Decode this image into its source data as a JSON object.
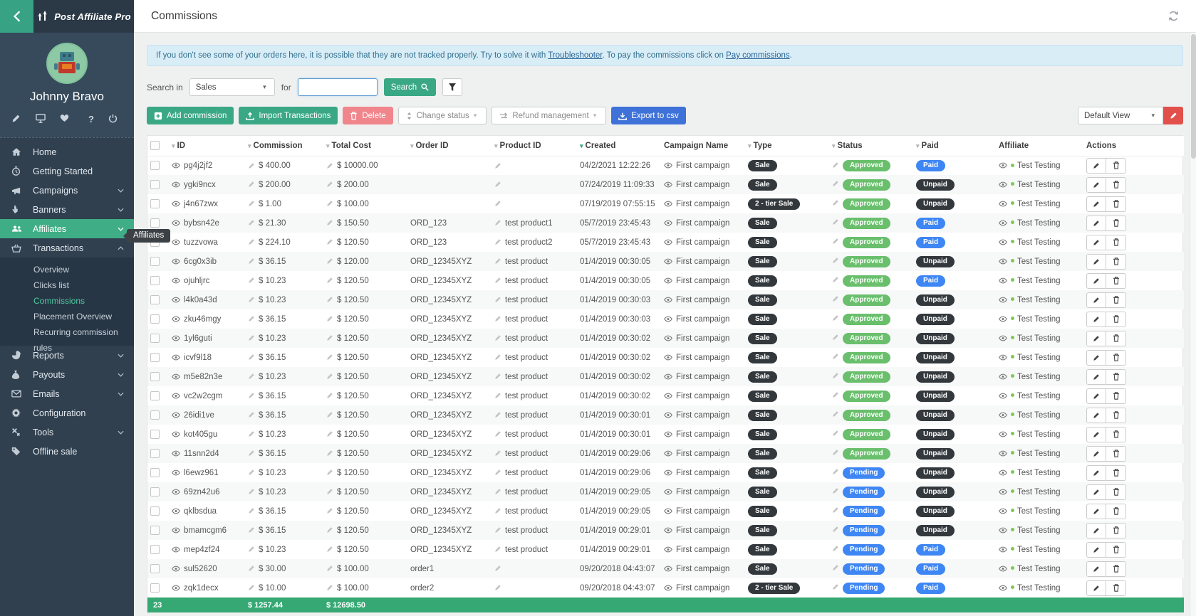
{
  "colors": {
    "primary_green": "#3aa884",
    "active_menu_green": "#3fae87",
    "approved_green": "#69bf6c",
    "status_blue": "#3e86f4",
    "pill_dark": "#33383d",
    "delete_pink": "#f0868c",
    "export_blue": "#3f72d8",
    "edit_red": "#e2504c",
    "footer_green": "#35a873",
    "banner_bg": "#d9edf7",
    "banner_text": "#31708f"
  },
  "sidebar": {
    "brand": "Post Affiliate Pro",
    "user_name": "Johnny Bravo",
    "quick_icons": [
      "edit-icon",
      "monitor-icon",
      "health-icon",
      "help-icon",
      "power-icon"
    ],
    "tooltip": "Affiliates",
    "menu": [
      {
        "label": "Home",
        "icon": "home",
        "chevron": "none",
        "active": false
      },
      {
        "label": "Getting Started",
        "icon": "clock",
        "chevron": "none",
        "active": false
      },
      {
        "label": "Campaigns",
        "icon": "megaphone",
        "chevron": "down",
        "active": false
      },
      {
        "label": "Banners",
        "icon": "pointer",
        "chevron": "down",
        "active": false
      },
      {
        "label": "Affiliates",
        "icon": "users",
        "chevron": "down",
        "active": true
      },
      {
        "label": "Transactions",
        "icon": "basket",
        "chevron": "up",
        "active": false,
        "submenu": [
          {
            "label": "Overview",
            "active": false
          },
          {
            "label": "Clicks list",
            "active": false
          },
          {
            "label": "Commissions",
            "active": true
          },
          {
            "label": "Placement Overview",
            "active": false
          },
          {
            "label": "Recurring commission rules",
            "active": false
          }
        ]
      },
      {
        "label": "Reports",
        "icon": "pie",
        "chevron": "down",
        "active": false
      },
      {
        "label": "Payouts",
        "icon": "moneybag",
        "chevron": "down",
        "active": false
      },
      {
        "label": "Emails",
        "icon": "envelope",
        "chevron": "down",
        "active": false
      },
      {
        "label": "Configuration",
        "icon": "gear",
        "chevron": "none",
        "active": false
      },
      {
        "label": "Tools",
        "icon": "tools",
        "chevron": "down",
        "active": false
      },
      {
        "label": "Offline sale",
        "icon": "tag",
        "chevron": "none",
        "active": false
      }
    ]
  },
  "topbar": {
    "title": "Commissions"
  },
  "banner": {
    "text_before": "If you don't see some of your orders here, it is possible that they are not tracked properly. Try to solve it with ",
    "link1": "Troubleshooter",
    "text_mid": ". To pay the commissions click on ",
    "link2": "Pay commissions",
    "text_after": "."
  },
  "search": {
    "label": "Search in",
    "selected": "Sales",
    "for_label": "for",
    "input_value": "",
    "button": "Search"
  },
  "toolbar": {
    "add": "Add commission",
    "import": "Import Transactions",
    "delete": "Delete",
    "change_status": "Change status",
    "refund": "Refund management",
    "export": "Export to csv",
    "view": "Default View"
  },
  "table": {
    "columns": [
      {
        "key": "check",
        "label": "",
        "sort": "none"
      },
      {
        "key": "id",
        "label": "ID",
        "sort": "gray"
      },
      {
        "key": "commission",
        "label": "Commission",
        "sort": "gray"
      },
      {
        "key": "cost",
        "label": "Total Cost",
        "sort": "gray"
      },
      {
        "key": "order",
        "label": "Order ID",
        "sort": "gray"
      },
      {
        "key": "product",
        "label": "Product ID",
        "sort": "gray"
      },
      {
        "key": "created",
        "label": "Created",
        "sort": "desc-active"
      },
      {
        "key": "campaign",
        "label": "Campaign Name",
        "sort": "none"
      },
      {
        "key": "type",
        "label": "Type",
        "sort": "gray"
      },
      {
        "key": "status",
        "label": "Status",
        "sort": "gray"
      },
      {
        "key": "paid",
        "label": "Paid",
        "sort": "gray"
      },
      {
        "key": "affiliate",
        "label": "Affiliate",
        "sort": "none"
      },
      {
        "key": "actions",
        "label": "Actions",
        "sort": "none"
      }
    ],
    "rows": [
      {
        "id": "pg4j2jf2",
        "commission": "$ 400.00",
        "cost": "$ 10000.00",
        "order": "",
        "product": "",
        "created": "04/2/2021 12:22:26",
        "campaign": "First campaign",
        "type": "Sale",
        "status": "Approved",
        "paid": "Paid",
        "affiliate": "Test Testing"
      },
      {
        "id": "ygki9ncx",
        "commission": "$ 200.00",
        "cost": "$ 200.00",
        "order": "",
        "product": "",
        "created": "07/24/2019 11:09:33",
        "campaign": "First campaign",
        "type": "Sale",
        "status": "Approved",
        "paid": "Unpaid",
        "affiliate": "Test Testing"
      },
      {
        "id": "j4n67zwx",
        "commission": "$ 1.00",
        "cost": "$ 100.00",
        "order": "",
        "product": "",
        "created": "07/19/2019 07:55:15",
        "campaign": "First campaign",
        "type": "2 - tier Sale",
        "status": "Approved",
        "paid": "Unpaid",
        "affiliate": "Test Testing"
      },
      {
        "id": "bybsn42e",
        "commission": "$ 21.30",
        "cost": "$ 150.50",
        "order": "ORD_123",
        "product": "test product1",
        "created": "05/7/2019 23:45:43",
        "campaign": "First campaign",
        "type": "Sale",
        "status": "Approved",
        "paid": "Paid",
        "affiliate": "Test Testing"
      },
      {
        "id": "tuzzvowa",
        "commission": "$ 224.10",
        "cost": "$ 120.50",
        "order": "ORD_123",
        "product": "test product2",
        "created": "05/7/2019 23:45:43",
        "campaign": "First campaign",
        "type": "Sale",
        "status": "Approved",
        "paid": "Paid",
        "affiliate": "Test Testing"
      },
      {
        "id": "6cg0x3ib",
        "commission": "$ 36.15",
        "cost": "$ 120.00",
        "order": "ORD_12345XYZ",
        "product": "test product",
        "created": "01/4/2019 00:30:05",
        "campaign": "First campaign",
        "type": "Sale",
        "status": "Approved",
        "paid": "Unpaid",
        "affiliate": "Test Testing"
      },
      {
        "id": "ojuhljrc",
        "commission": "$ 10.23",
        "cost": "$ 120.50",
        "order": "ORD_12345XYZ",
        "product": "test product",
        "created": "01/4/2019 00:30:05",
        "campaign": "First campaign",
        "type": "Sale",
        "status": "Approved",
        "paid": "Paid",
        "affiliate": "Test Testing"
      },
      {
        "id": "l4k0a43d",
        "commission": "$ 10.23",
        "cost": "$ 120.50",
        "order": "ORD_12345XYZ",
        "product": "test product",
        "created": "01/4/2019 00:30:03",
        "campaign": "First campaign",
        "type": "Sale",
        "status": "Approved",
        "paid": "Unpaid",
        "affiliate": "Test Testing"
      },
      {
        "id": "zku46mgy",
        "commission": "$ 36.15",
        "cost": "$ 120.50",
        "order": "ORD_12345XYZ",
        "product": "test product",
        "created": "01/4/2019 00:30:03",
        "campaign": "First campaign",
        "type": "Sale",
        "status": "Approved",
        "paid": "Unpaid",
        "affiliate": "Test Testing"
      },
      {
        "id": "1yl6guti",
        "commission": "$ 10.23",
        "cost": "$ 120.50",
        "order": "ORD_12345XYZ",
        "product": "test product",
        "created": "01/4/2019 00:30:02",
        "campaign": "First campaign",
        "type": "Sale",
        "status": "Approved",
        "paid": "Unpaid",
        "affiliate": "Test Testing"
      },
      {
        "id": "icvf9l18",
        "commission": "$ 36.15",
        "cost": "$ 120.50",
        "order": "ORD_12345XYZ",
        "product": "test product",
        "created": "01/4/2019 00:30:02",
        "campaign": "First campaign",
        "type": "Sale",
        "status": "Approved",
        "paid": "Unpaid",
        "affiliate": "Test Testing"
      },
      {
        "id": "m5e82n3e",
        "commission": "$ 10.23",
        "cost": "$ 120.50",
        "order": "ORD_12345XYZ",
        "product": "test product",
        "created": "01/4/2019 00:30:02",
        "campaign": "First campaign",
        "type": "Sale",
        "status": "Approved",
        "paid": "Unpaid",
        "affiliate": "Test Testing"
      },
      {
        "id": "vc2w2cgm",
        "commission": "$ 36.15",
        "cost": "$ 120.50",
        "order": "ORD_12345XYZ",
        "product": "test product",
        "created": "01/4/2019 00:30:02",
        "campaign": "First campaign",
        "type": "Sale",
        "status": "Approved",
        "paid": "Unpaid",
        "affiliate": "Test Testing"
      },
      {
        "id": "26idi1ve",
        "commission": "$ 36.15",
        "cost": "$ 120.50",
        "order": "ORD_12345XYZ",
        "product": "test product",
        "created": "01/4/2019 00:30:01",
        "campaign": "First campaign",
        "type": "Sale",
        "status": "Approved",
        "paid": "Unpaid",
        "affiliate": "Test Testing"
      },
      {
        "id": "kot405gu",
        "commission": "$ 10.23",
        "cost": "$ 120.50",
        "order": "ORD_12345XYZ",
        "product": "test product",
        "created": "01/4/2019 00:30:01",
        "campaign": "First campaign",
        "type": "Sale",
        "status": "Approved",
        "paid": "Unpaid",
        "affiliate": "Test Testing"
      },
      {
        "id": "11snn2d4",
        "commission": "$ 36.15",
        "cost": "$ 120.50",
        "order": "ORD_12345XYZ",
        "product": "test product",
        "created": "01/4/2019 00:29:06",
        "campaign": "First campaign",
        "type": "Sale",
        "status": "Approved",
        "paid": "Unpaid",
        "affiliate": "Test Testing"
      },
      {
        "id": "l6ewz961",
        "commission": "$ 10.23",
        "cost": "$ 120.50",
        "order": "ORD_12345XYZ",
        "product": "test product",
        "created": "01/4/2019 00:29:06",
        "campaign": "First campaign",
        "type": "Sale",
        "status": "Pending",
        "paid": "Unpaid",
        "affiliate": "Test Testing"
      },
      {
        "id": "69zn42u6",
        "commission": "$ 10.23",
        "cost": "$ 120.50",
        "order": "ORD_12345XYZ",
        "product": "test product",
        "created": "01/4/2019 00:29:05",
        "campaign": "First campaign",
        "type": "Sale",
        "status": "Pending",
        "paid": "Unpaid",
        "affiliate": "Test Testing"
      },
      {
        "id": "qklbsdua",
        "commission": "$ 36.15",
        "cost": "$ 120.50",
        "order": "ORD_12345XYZ",
        "product": "test product",
        "created": "01/4/2019 00:29:05",
        "campaign": "First campaign",
        "type": "Sale",
        "status": "Pending",
        "paid": "Unpaid",
        "affiliate": "Test Testing"
      },
      {
        "id": "bmamcgm6",
        "commission": "$ 36.15",
        "cost": "$ 120.50",
        "order": "ORD_12345XYZ",
        "product": "test product",
        "created": "01/4/2019 00:29:01",
        "campaign": "First campaign",
        "type": "Sale",
        "status": "Pending",
        "paid": "Unpaid",
        "affiliate": "Test Testing"
      },
      {
        "id": "mep4zf24",
        "commission": "$ 10.23",
        "cost": "$ 120.50",
        "order": "ORD_12345XYZ",
        "product": "test product",
        "created": "01/4/2019 00:29:01",
        "campaign": "First campaign",
        "type": "Sale",
        "status": "Pending",
        "paid": "Paid",
        "affiliate": "Test Testing"
      },
      {
        "id": "sul52620",
        "commission": "$ 30.00",
        "cost": "$ 100.00",
        "order": "order1",
        "product": "",
        "created": "09/20/2018 04:43:07",
        "campaign": "First campaign",
        "type": "Sale",
        "status": "Pending",
        "paid": "Paid",
        "affiliate": "Test Testing"
      },
      {
        "id": "zqk1decx",
        "commission": "$ 10.00",
        "cost": "$ 100.00",
        "order": "order2",
        "product": "",
        "created": "09/20/2018 04:43:07",
        "campaign": "First campaign",
        "type": "2 - tier Sale",
        "status": "Pending",
        "paid": "Paid",
        "affiliate": "Test Testing"
      }
    ],
    "footer": {
      "count": "23",
      "commission_total": "$ 1257.44",
      "cost_total": "$ 12698.50"
    }
  }
}
